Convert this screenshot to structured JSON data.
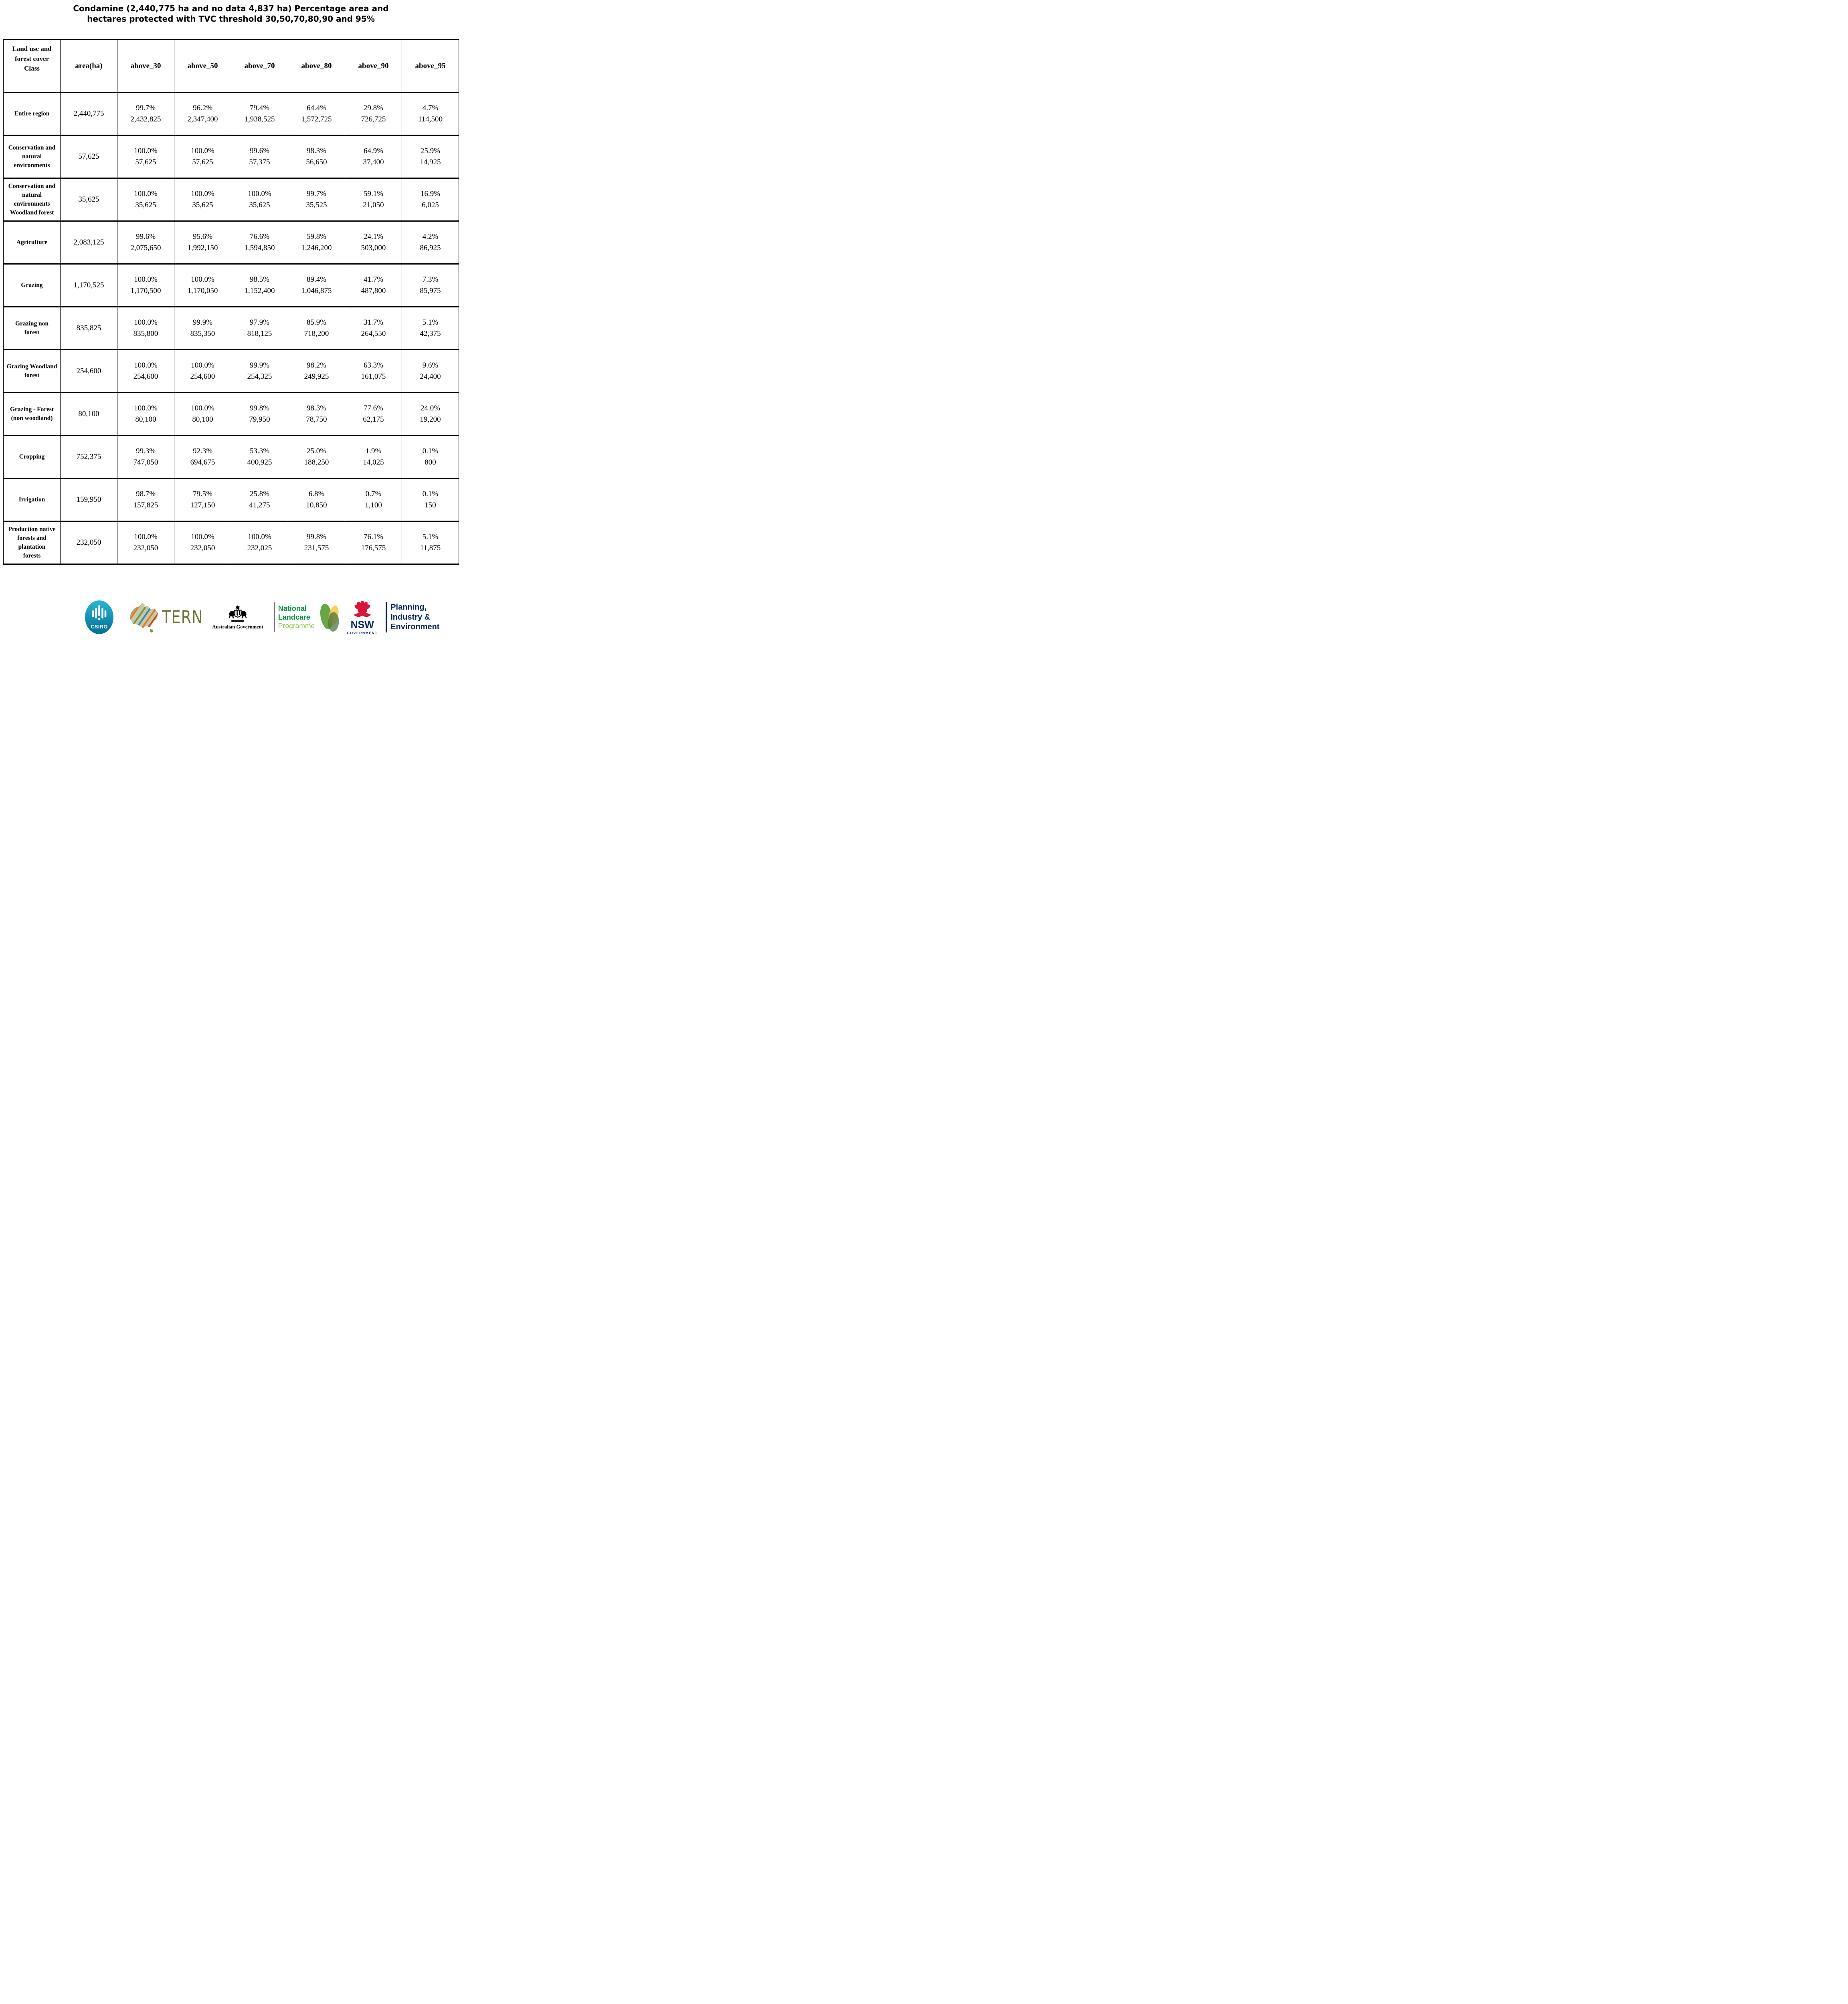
{
  "title": {
    "line1": "Condamine (2,440,775 ha and no data 4,837 ha) Percentage area and",
    "line2": "hectares protected with TVC threshold 30,50,70,80,90 and 95%"
  },
  "table": {
    "columns": [
      "Land use and\nforest cover\nClass",
      "area(ha)",
      "above_30",
      "above_50",
      "above_70",
      "above_80",
      "above_90",
      "above_95"
    ],
    "rows": [
      [
        "Entire region",
        "2,440,775",
        "99.7%\n2,432,825",
        "96.2%\n2,347,400",
        "79.4%\n1,938,525",
        "64.4%\n1,572,725",
        "29.8%\n726,725",
        "4.7%\n114,500"
      ],
      [
        "Conservation and\nnatural\nenvironments",
        "57,625",
        "100.0%\n57,625",
        "100.0%\n57,625",
        "99.6%\n57,375",
        "98.3%\n56,650",
        "64.9%\n37,400",
        "25.9%\n14,925"
      ],
      [
        "Conservation and\nnatural\nenvironments\nWoodland forest",
        "35,625",
        "100.0%\n35,625",
        "100.0%\n35,625",
        "100.0%\n35,625",
        "99.7%\n35,525",
        "59.1%\n21,050",
        "16.9%\n6,025"
      ],
      [
        "Agriculture",
        "2,083,125",
        "99.6%\n2,075,650",
        "95.6%\n1,992,150",
        "76.6%\n1,594,850",
        "59.8%\n1,246,200",
        "24.1%\n503,000",
        "4.2%\n86,925"
      ],
      [
        "Grazing",
        "1,170,525",
        "100.0%\n1,170,500",
        "100.0%\n1,170,050",
        "98.5%\n1,152,400",
        "89.4%\n1,046,875",
        "41.7%\n487,800",
        "7.3%\n85,975"
      ],
      [
        "Grazing non\nforest",
        "835,825",
        "100.0%\n835,800",
        "99.9%\n835,350",
        "97.9%\n818,125",
        "85.9%\n718,200",
        "31.7%\n264,550",
        "5.1%\n42,375"
      ],
      [
        "Grazing Woodland\nforest",
        "254,600",
        "100.0%\n254,600",
        "100.0%\n254,600",
        "99.9%\n254,325",
        "98.2%\n249,925",
        "63.3%\n161,075",
        "9.6%\n24,400"
      ],
      [
        "Grazing - Forest\n(non woodland)",
        "80,100",
        "100.0%\n80,100",
        "100.0%\n80,100",
        "99.8%\n79,950",
        "98.3%\n78,750",
        "77.6%\n62,175",
        "24.0%\n19,200"
      ],
      [
        "Cropping",
        "752,375",
        "99.3%\n747,050",
        "92.3%\n694,675",
        "53.3%\n400,925",
        "25.0%\n188,250",
        "1.9%\n14,025",
        "0.1%\n800"
      ],
      [
        "Irrigation",
        "159,950",
        "98.7%\n157,825",
        "79.5%\n127,150",
        "25.8%\n41,275",
        "6.8%\n10,850",
        "0.7%\n1,100",
        "0.1%\n150"
      ],
      [
        "Production native\nforests and\nplantation\nforests",
        "232,050",
        "100.0%\n232,050",
        "100.0%\n232,050",
        "100.0%\n232,025",
        "99.8%\n231,575",
        "76.1%\n176,575",
        "5.1%\n11,875"
      ]
    ]
  },
  "footer": {
    "csiro": {
      "label": "CSIRO"
    },
    "tern": {
      "label": "TERN"
    },
    "australian_government": {
      "label": "Australian Government"
    },
    "landcare": {
      "line1": "National",
      "line2": "Landcare",
      "line3": "Programme"
    },
    "nsw": {
      "label": "NSW",
      "sublabel": "GOVERNMENT"
    },
    "department": {
      "line1": "Planning,",
      "line2": "Industry &",
      "line3": "Environment"
    }
  },
  "colors": {
    "csiro_teal_top": "#2cb5d6",
    "csiro_teal_bottom": "#006f95",
    "tern_olive": "#6d7135",
    "landcare_green": "#00953b",
    "landcare_light_green": "#8bc53f",
    "nsw_waratah_red": "#d7153a",
    "nsw_navy": "#002664",
    "table_line": "#000000"
  }
}
